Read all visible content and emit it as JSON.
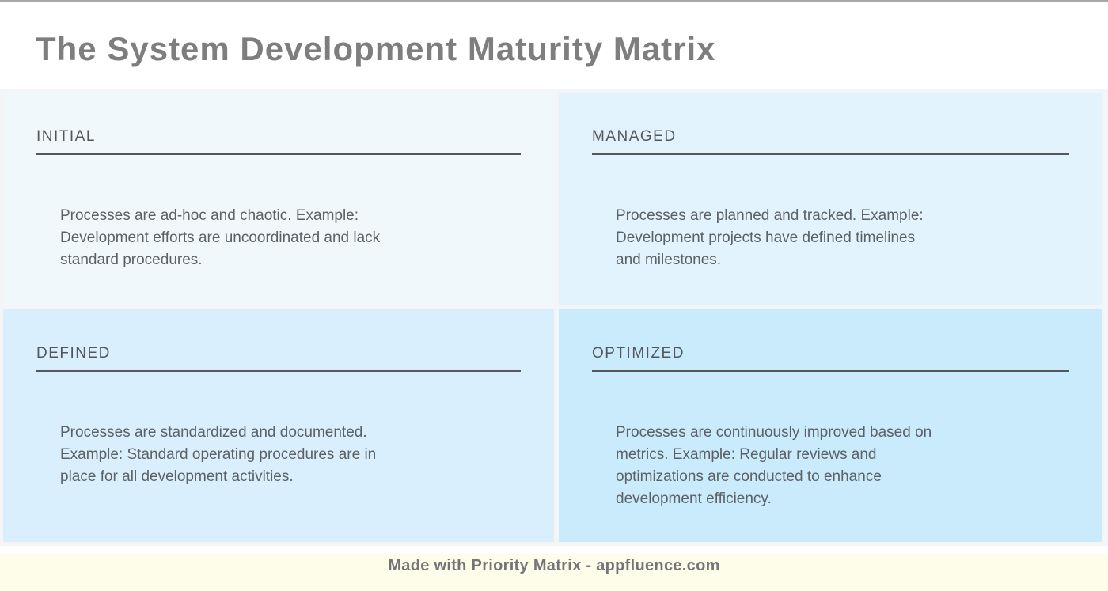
{
  "header": {
    "title": "The System Development Maturity Matrix"
  },
  "matrix": {
    "container_bg": "#f4f5f6",
    "quadrants": [
      {
        "id": "initial",
        "label": "INITIAL",
        "description": "Processes are ad-hoc and chaotic. Example:\nDevelopment efforts are uncoordinated and lack\nstandard procedures.",
        "bg": "#f1f8fc"
      },
      {
        "id": "managed",
        "label": "MANAGED",
        "description": "Processes are planned and tracked. Example:\nDevelopment projects have defined timelines\nand milestones.",
        "bg": "#e3f3fd"
      },
      {
        "id": "defined",
        "label": "DEFINED",
        "description": "Processes are standardized and documented.\nExample: Standard operating procedures are in\nplace for all development activities.",
        "bg": "#d9effd"
      },
      {
        "id": "optimized",
        "label": "OPTIMIZED",
        "description": "Processes are continuously improved based on\nmetrics. Example: Regular reviews and\noptimizations are conducted to enhance\ndevelopment efficiency.",
        "bg": "#c9ebfc"
      }
    ]
  },
  "footer": {
    "credit": "Made with Priority Matrix - appfluence.com",
    "bg": "#fdfdea"
  },
  "colors": {
    "title_gray": "#7e7e7e",
    "quadrant_title_gray": "#54565a",
    "body_text_gray": "#5c6165",
    "underline_gray": "#55575a",
    "footer_text_gray": "#737578",
    "top_border_gray": "#a8a8a8"
  }
}
